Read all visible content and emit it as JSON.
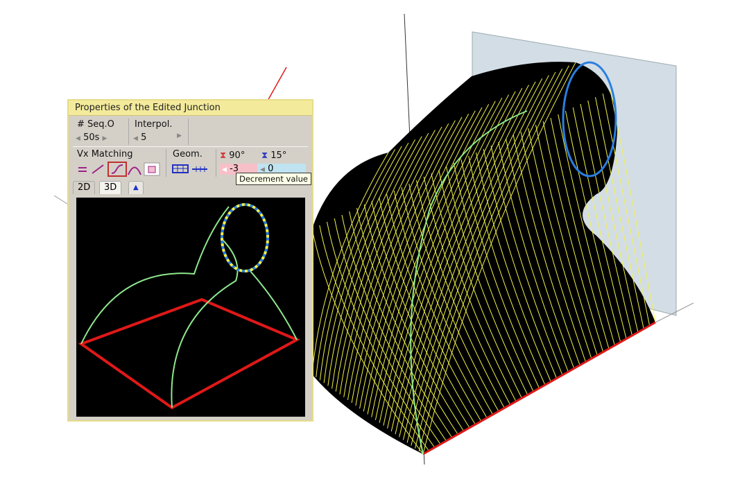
{
  "panel": {
    "title": "Properties of the Edited Junction",
    "seq": {
      "label": "# Seq.O",
      "value": "50s"
    },
    "interpol": {
      "label": "Interpol.",
      "value": "5"
    },
    "vx_matching": {
      "label": "Vx Matching",
      "icons": [
        "equal-icon",
        "line-icon",
        "s-curve-icon",
        "arc-icon",
        "square-icon"
      ],
      "selected": "s-curve-icon"
    },
    "geom": {
      "label": "Geom.",
      "icons": [
        "grid-icon",
        "dotted-line-icon"
      ]
    },
    "angle1": {
      "label": "90°",
      "value": "-3",
      "color": "#f7c0c8"
    },
    "angle2": {
      "label": "15°",
      "value": "0",
      "color": "#bfe3f0"
    },
    "tabs": [
      "2D",
      "3D"
    ],
    "tooltip": "Decrement value"
  },
  "colors": {
    "mesh": "#f2f24a",
    "edge": "#e01818",
    "profile": "#8ee88e",
    "plane": "#d3dde6",
    "accent": "#2a7fe0"
  }
}
